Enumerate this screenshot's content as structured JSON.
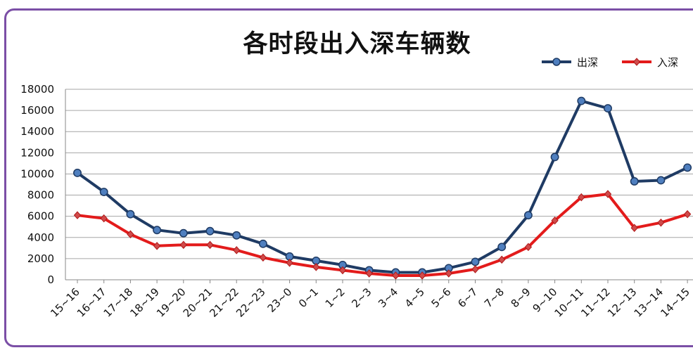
{
  "chart_data": {
    "type": "line",
    "title": "各时段出入深车辆数",
    "categories": [
      "15~16",
      "16~17",
      "17~18",
      "18~19",
      "19~20",
      "20~21",
      "21~22",
      "22~23",
      "23~0",
      "0~1",
      "1~2",
      "2~3",
      "3~4",
      "4~5",
      "5~6",
      "6~7",
      "7~8",
      "8~9",
      "9~10",
      "10~11",
      "11~12",
      "12~13",
      "13~14",
      "14~15"
    ],
    "series": [
      {
        "name": "出深",
        "color": "#1f3b64",
        "values": [
          10100,
          8300,
          6200,
          4700,
          4400,
          4600,
          4200,
          3400,
          2200,
          1800,
          1400,
          900,
          700,
          700,
          1100,
          1700,
          3100,
          6100,
          11600,
          16900,
          16200,
          9300,
          9400,
          10600
        ]
      },
      {
        "name": "入深",
        "color": "#e31b1b",
        "values": [
          6100,
          5800,
          4300,
          3200,
          3300,
          3300,
          2800,
          2100,
          1600,
          1200,
          900,
          600,
          400,
          400,
          600,
          1000,
          1900,
          3100,
          5600,
          7800,
          8100,
          4900,
          5400,
          6200
        ]
      }
    ],
    "ylim": [
      0,
      18000
    ],
    "yticks": [
      0,
      2000,
      4000,
      6000,
      8000,
      10000,
      12000,
      14000,
      16000,
      18000
    ],
    "grid": true,
    "legend": "top-right",
    "xlabel": "",
    "ylabel": ""
  }
}
